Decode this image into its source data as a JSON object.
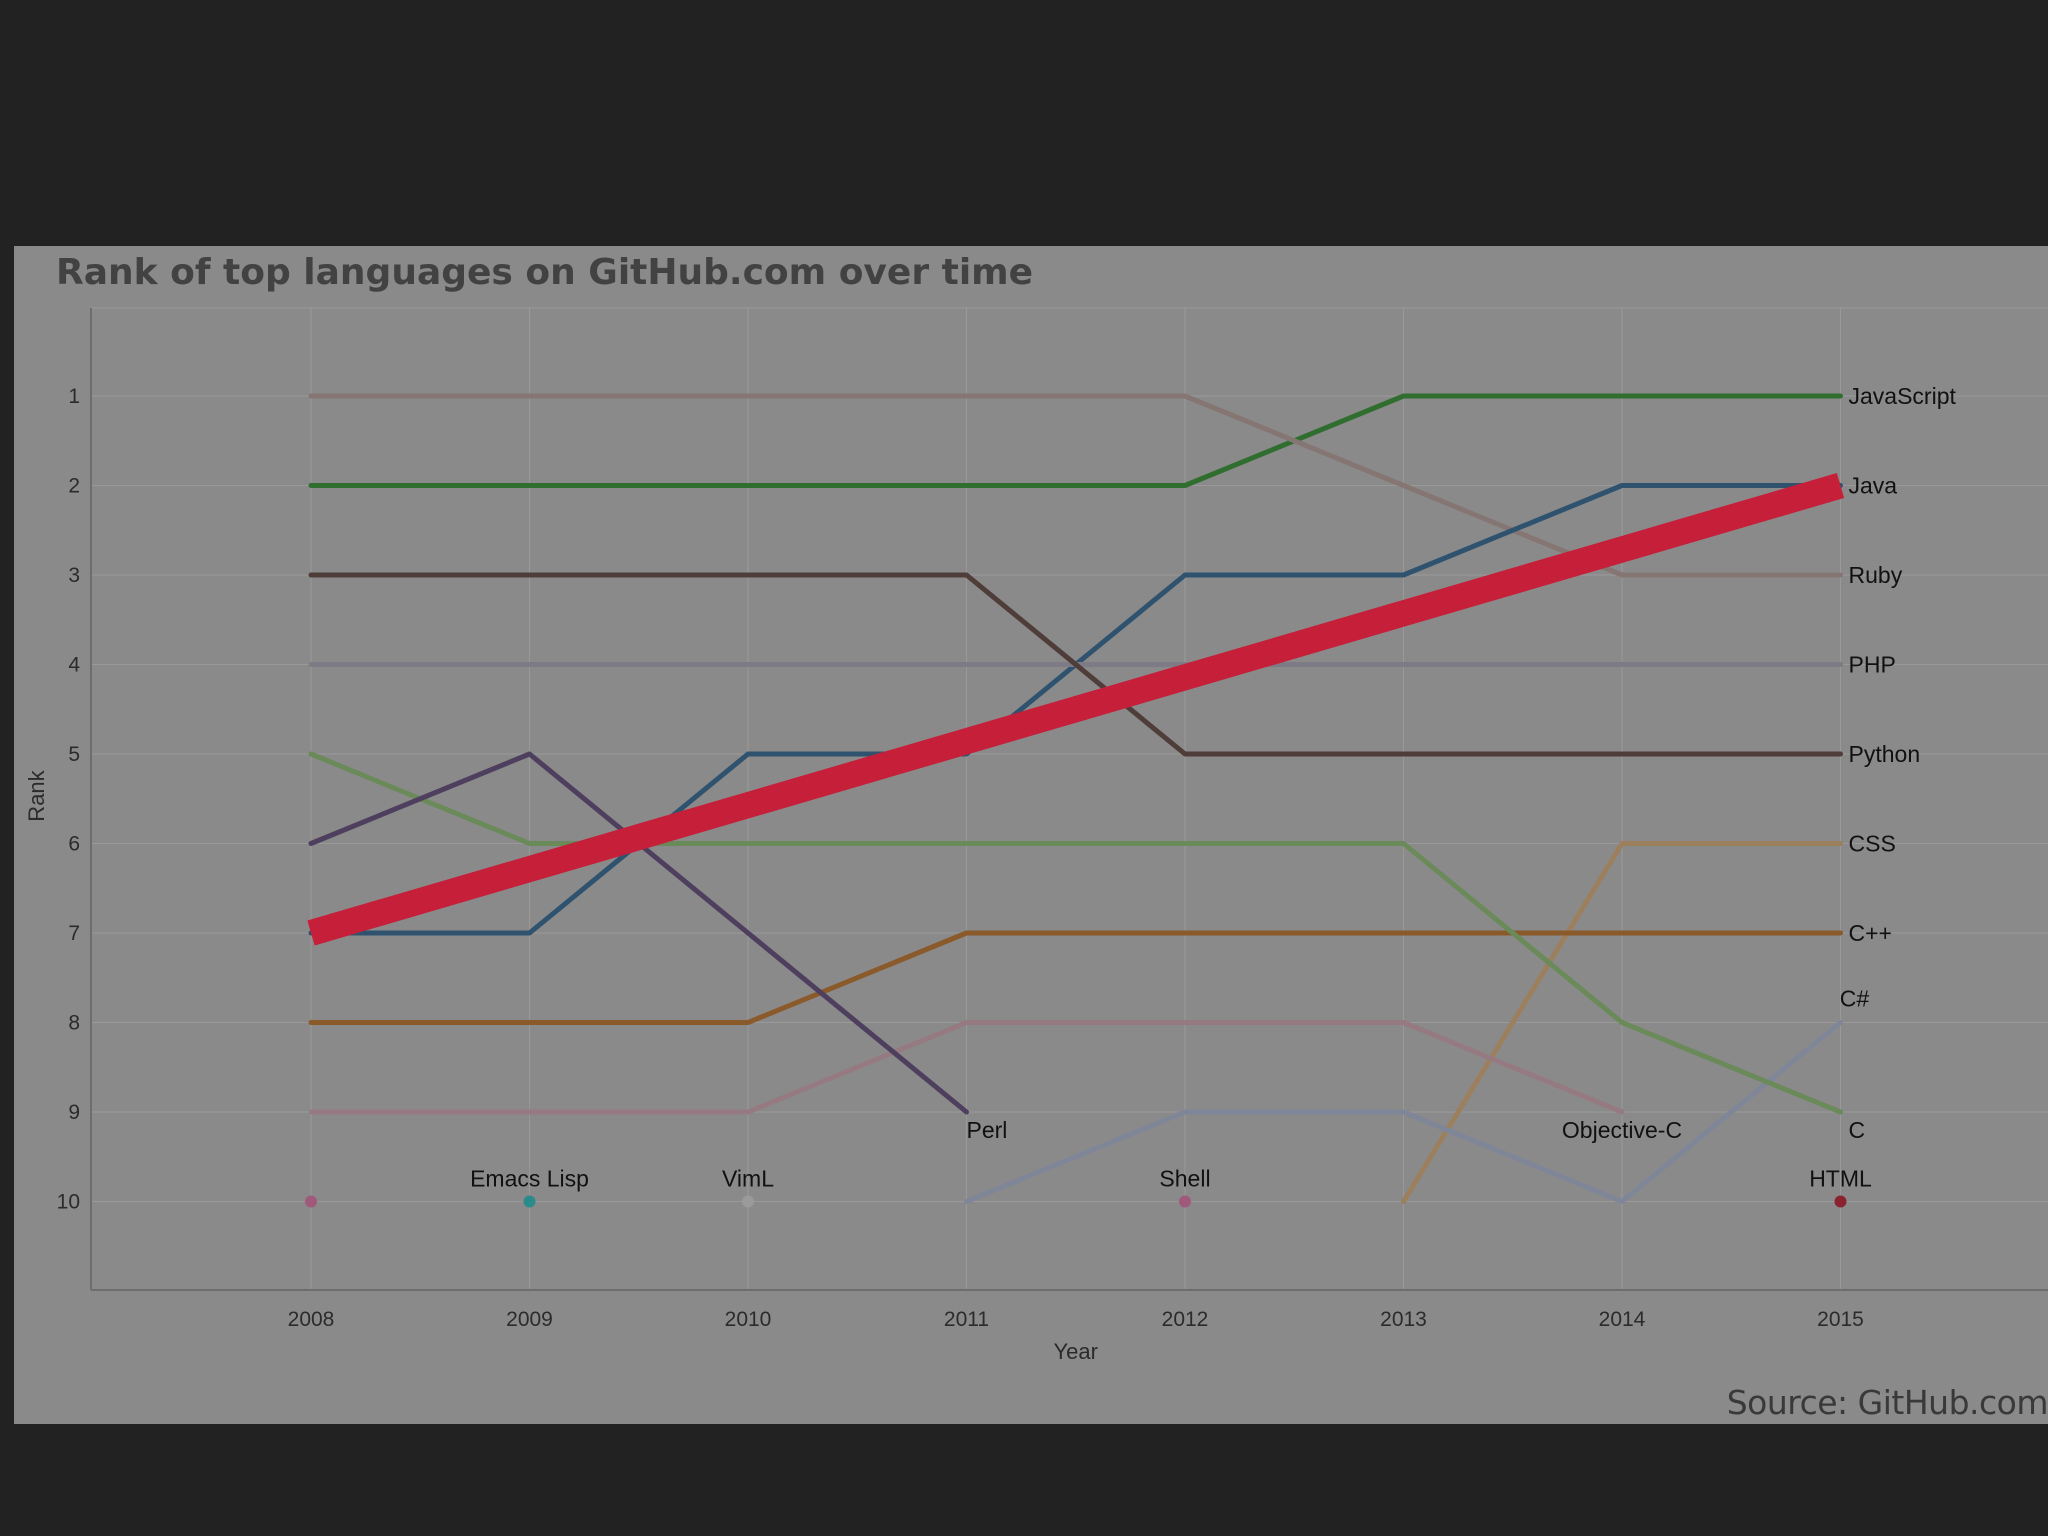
{
  "chart_data": {
    "type": "line",
    "title": "Rank of top languages on GitHub.com over time",
    "source": "Source: GitHub.com",
    "xlabel": "Year",
    "ylabel": "Rank",
    "x": [
      2008,
      2009,
      2010,
      2011,
      2012,
      2013,
      2014,
      2015
    ],
    "yticks": [
      1,
      2,
      3,
      4,
      5,
      6,
      7,
      8,
      9,
      10
    ],
    "ylim": [
      0,
      11
    ],
    "y_inverted": true,
    "grid": true,
    "series": [
      {
        "name": "JavaScript",
        "color": "#7d6e6a",
        "label_year": 2015,
        "label_rank": 1,
        "points": [
          [
            2008,
            2
          ],
          [
            2009,
            2
          ],
          [
            2010,
            2
          ],
          [
            2011,
            2
          ],
          [
            2012,
            2
          ],
          [
            2013,
            1
          ],
          [
            2014,
            1
          ],
          [
            2015,
            1
          ]
        ],
        "line_color": "#2f6e2f"
      },
      {
        "name": "Ruby",
        "color": "#857673",
        "label_year": 2015,
        "label_rank": 3,
        "points": [
          [
            2008,
            1
          ],
          [
            2009,
            1
          ],
          [
            2010,
            1
          ],
          [
            2011,
            1
          ],
          [
            2012,
            1
          ],
          [
            2013,
            2
          ],
          [
            2014,
            3
          ],
          [
            2015,
            3
          ]
        ]
      },
      {
        "name": "Java",
        "color": "#2f536e",
        "label_year": 2015,
        "label_rank": 2,
        "points": [
          [
            2008,
            7
          ],
          [
            2009,
            7
          ],
          [
            2010,
            5
          ],
          [
            2011,
            5
          ],
          [
            2012,
            3
          ],
          [
            2013,
            3
          ],
          [
            2014,
            2
          ],
          [
            2015,
            2
          ]
        ]
      },
      {
        "name": "PHP",
        "color": "#7e7a86",
        "label_year": 2015,
        "label_rank": 4,
        "points": [
          [
            2008,
            4
          ],
          [
            2009,
            4
          ],
          [
            2010,
            4
          ],
          [
            2011,
            4
          ],
          [
            2012,
            4
          ],
          [
            2013,
            4
          ],
          [
            2014,
            4
          ],
          [
            2015,
            4
          ]
        ]
      },
      {
        "name": "Python",
        "color": "#4e3d39",
        "label_year": 2015,
        "label_rank": 5,
        "points": [
          [
            2008,
            3
          ],
          [
            2009,
            3
          ],
          [
            2010,
            3
          ],
          [
            2011,
            3
          ],
          [
            2012,
            5
          ],
          [
            2013,
            5
          ],
          [
            2014,
            5
          ],
          [
            2015,
            5
          ]
        ]
      },
      {
        "name": "CSS",
        "color": "#9c7f5d",
        "label_year": 2015,
        "label_rank": 6,
        "points": [
          [
            2013,
            10
          ],
          [
            2014,
            6
          ],
          [
            2015,
            6
          ]
        ]
      },
      {
        "name": "C++",
        "color": "#8a5a2a",
        "label_year": 2015,
        "label_rank": 7,
        "points": [
          [
            2008,
            8
          ],
          [
            2009,
            8
          ],
          [
            2010,
            8
          ],
          [
            2011,
            7
          ],
          [
            2012,
            7
          ],
          [
            2013,
            7
          ],
          [
            2014,
            7
          ],
          [
            2015,
            7
          ]
        ]
      },
      {
        "name": "C#",
        "color": "#7e8698",
        "label_year": 2015,
        "label_rank": 8,
        "points": [
          [
            2011,
            10
          ],
          [
            2012,
            9
          ],
          [
            2013,
            9
          ],
          [
            2014,
            10
          ],
          [
            2015,
            8
          ]
        ]
      },
      {
        "name": "C",
        "color": "#6b8a5a",
        "label_year": 2015,
        "label_rank": 9,
        "points": [
          [
            2008,
            5
          ],
          [
            2009,
            6
          ],
          [
            2010,
            6
          ],
          [
            2011,
            6
          ],
          [
            2012,
            6
          ],
          [
            2013,
            6
          ],
          [
            2014,
            8
          ],
          [
            2015,
            9
          ]
        ]
      },
      {
        "name": "Objective-C",
        "color": "#967a82",
        "label_year": 2014,
        "label_rank": 9,
        "points": [
          [
            2008,
            9
          ],
          [
            2009,
            9
          ],
          [
            2010,
            9
          ],
          [
            2011,
            8
          ],
          [
            2012,
            8
          ],
          [
            2013,
            8
          ],
          [
            2014,
            9
          ]
        ]
      },
      {
        "name": "Perl",
        "color": "#4e3f5e",
        "label_year": 2011,
        "label_rank": 9,
        "points": [
          [
            2008,
            6
          ],
          [
            2009,
            5
          ],
          [
            2010,
            7
          ],
          [
            2011,
            9
          ]
        ]
      }
    ],
    "rank10_points": [
      {
        "name": "",
        "year": 2008,
        "rank": 10,
        "color": "#a0597a"
      },
      {
        "name": "Emacs Lisp",
        "year": 2009,
        "rank": 10,
        "color": "#2b8a8a"
      },
      {
        "name": "VimL",
        "year": 2010,
        "rank": 10,
        "color": "#9a9a9a"
      },
      {
        "name": "Shell",
        "year": 2012,
        "rank": 10,
        "color": "#a0597a"
      },
      {
        "name": "HTML",
        "year": 2015,
        "rank": 10,
        "color": "#8a2330"
      }
    ],
    "overlay_arrow": {
      "color": "#c51f39",
      "from": [
        2008,
        7
      ],
      "to": [
        2015,
        2
      ]
    },
    "colors": {
      "panel": "#8b8a8b",
      "background": "#222223",
      "grid": "#9a999a"
    }
  }
}
